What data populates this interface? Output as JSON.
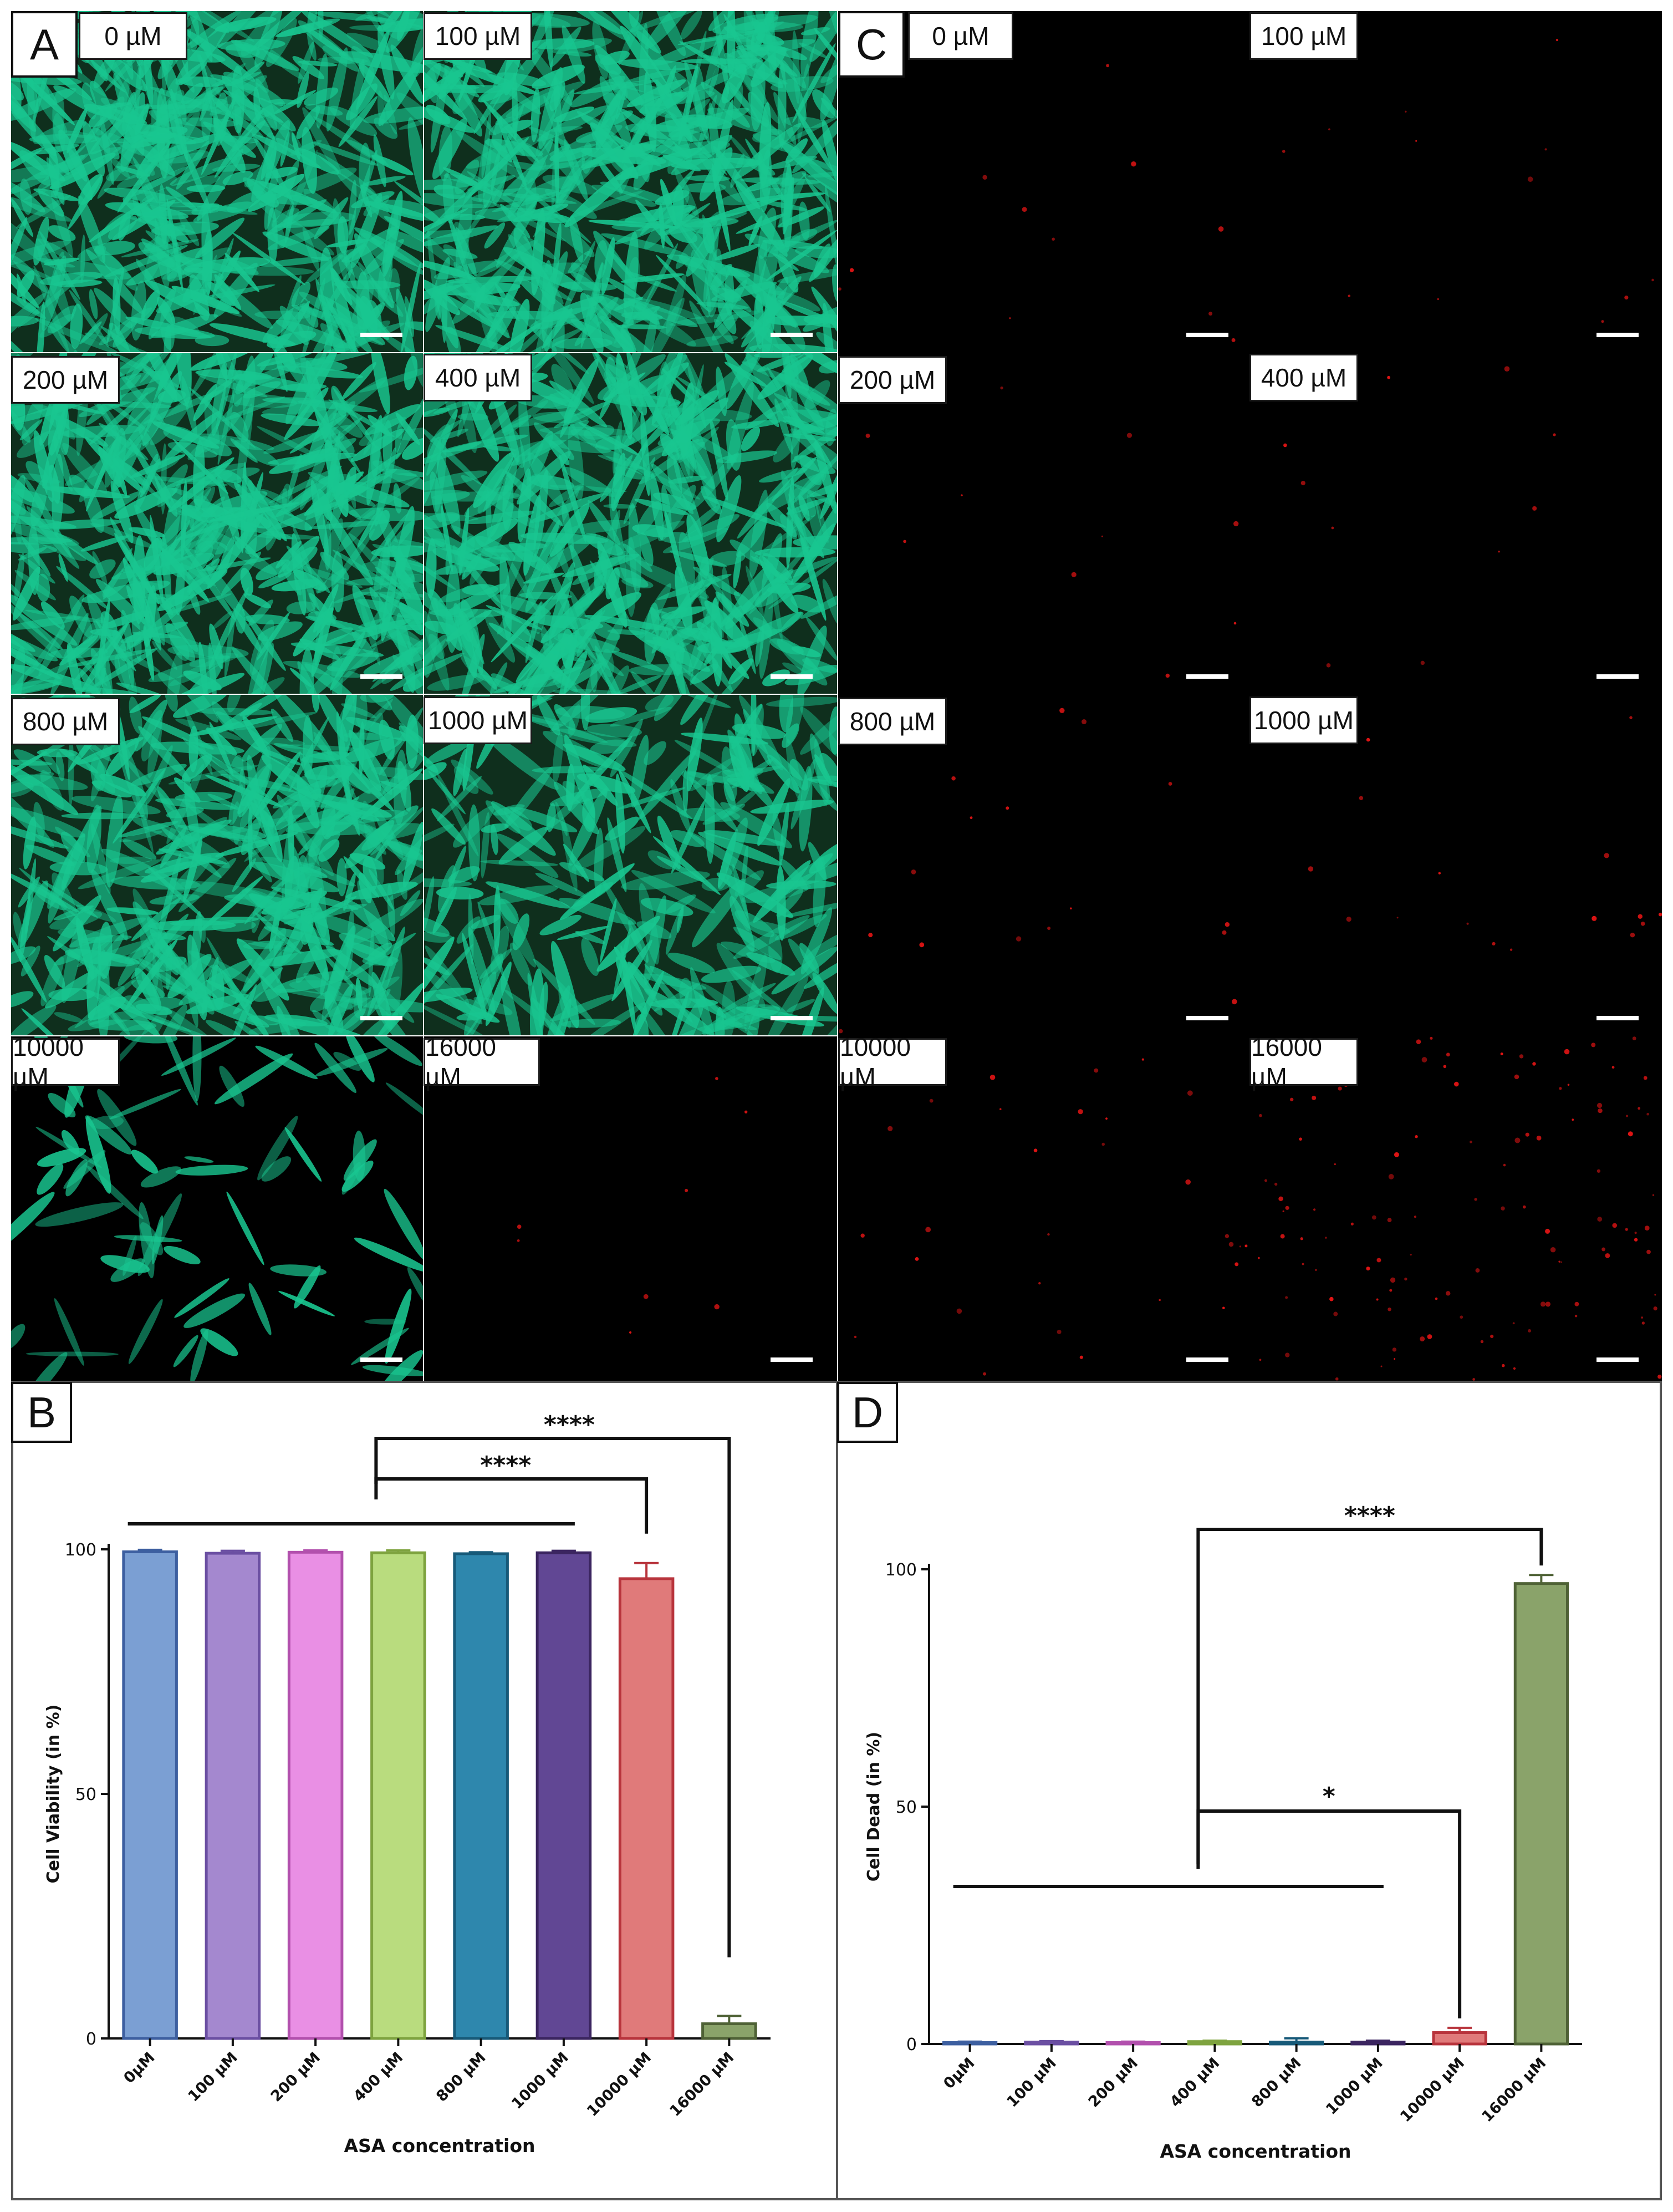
{
  "figure": {
    "panel_letters": [
      "A",
      "B",
      "C",
      "D"
    ],
    "scale_bar_color": "#ffffff",
    "live_stain_color": "#19c690",
    "dead_stain_color": "#e01414"
  },
  "panelA": {
    "tiles": [
      {
        "label": "0 µM",
        "density": 1.0
      },
      {
        "label": "100 µM",
        "density": 1.0
      },
      {
        "label": "200 µM",
        "density": 1.0
      },
      {
        "label": "400 µM",
        "density": 0.95
      },
      {
        "label": "800 µM",
        "density": 0.85
      },
      {
        "label": "1000 µM",
        "density": 0.6
      },
      {
        "label": "10000 µM",
        "density": 0.15
      },
      {
        "label": "16000 µM",
        "density": 0.0
      }
    ]
  },
  "panelC": {
    "tiles": [
      {
        "label": "0 µM",
        "density": 0.05
      },
      {
        "label": "100 µM",
        "density": 0.05
      },
      {
        "label": "200 µM",
        "density": 0.04
      },
      {
        "label": "400 µM",
        "density": 0.04
      },
      {
        "label": "800 µM",
        "density": 0.06
      },
      {
        "label": "1000 µM",
        "density": 0.06
      },
      {
        "label": "10000 µM",
        "density": 0.12
      },
      {
        "label": "16000 µM",
        "density": 0.45
      }
    ]
  },
  "chart_data": [
    {
      "type": "bar",
      "title": "",
      "xlabel": "ASA concentration",
      "ylabel": "Cell Viability (in %)",
      "ylim": [
        0,
        100
      ],
      "yticks": [
        "0",
        "50",
        "100"
      ],
      "categories": [
        "0µM",
        "100 µM",
        "200 µM",
        "400 µM",
        "800 µM",
        "1000 µM",
        "10000 µM",
        "16000 µM"
      ],
      "values": [
        99.5,
        99.2,
        99.4,
        99.3,
        99.1,
        99.3,
        94.0,
        3.0
      ],
      "errors": [
        0.4,
        0.5,
        0.4,
        0.5,
        0.3,
        0.4,
        3.2,
        1.6
      ],
      "fill_colors": [
        "#7b9fd3",
        "#a488cf",
        "#e98fe4",
        "#b9dc7e",
        "#2e87ad",
        "#614794",
        "#e07a7a",
        "#8aa36a"
      ],
      "edge_colors": [
        "#3d5fa0",
        "#6b4fa2",
        "#b250ad",
        "#7ea33f",
        "#175a79",
        "#3b2560",
        "#b8343c",
        "#4f6236"
      ],
      "significance": [
        {
          "label": "****",
          "from": 3,
          "to": 7
        },
        {
          "label": "****",
          "from": 3,
          "to": 6
        }
      ],
      "group_line": {
        "from": 0,
        "to": 5
      }
    },
    {
      "type": "bar",
      "title": "",
      "xlabel": "ASA concentration",
      "ylabel": "Cell Dead (in %)",
      "ylim": [
        0,
        100
      ],
      "yticks": [
        "0",
        "50",
        "100"
      ],
      "categories": [
        "0µM",
        "100 µM",
        "200 µM",
        "400 µM",
        "800 µM",
        "1000 µM",
        "10000 µM",
        "16000 µM"
      ],
      "values": [
        0.3,
        0.4,
        0.3,
        0.5,
        0.4,
        0.4,
        2.4,
        97.0
      ],
      "errors": [
        0.2,
        0.2,
        0.2,
        0.2,
        0.8,
        0.3,
        1.0,
        1.8
      ],
      "fill_colors": [
        "#7b9fd3",
        "#a488cf",
        "#e98fe4",
        "#b9dc7e",
        "#2e87ad",
        "#614794",
        "#e07a7a",
        "#8aa36a"
      ],
      "edge_colors": [
        "#3d5fa0",
        "#6b4fa2",
        "#b250ad",
        "#7ea33f",
        "#175a79",
        "#3b2560",
        "#b8343c",
        "#4f6236"
      ],
      "significance": [
        {
          "label": "****",
          "from": 3,
          "to": 7
        },
        {
          "label": "*",
          "from": 3,
          "to": 6
        }
      ],
      "group_line": {
        "from": 0,
        "to": 5
      }
    }
  ]
}
